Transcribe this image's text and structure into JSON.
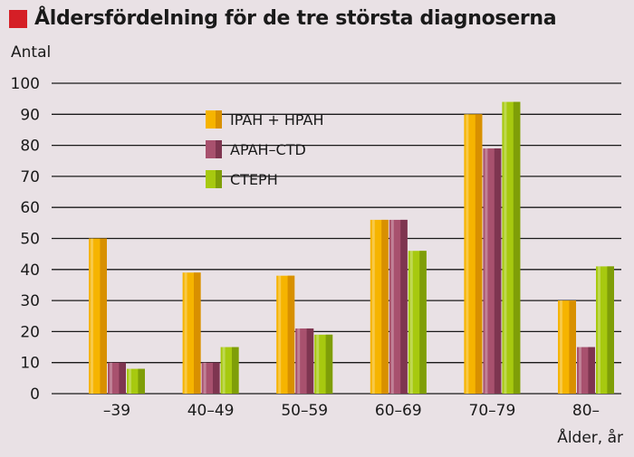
{
  "title": "Åldersfördelning för de tre största diagnoserna",
  "colors": {
    "title_marker": "#d51f26",
    "background": "#e9e1e5",
    "grid": "#1a1a1a"
  },
  "chart_data": {
    "type": "bar",
    "title": "Åldersfördelning för de tre största diagnoserna",
    "ylabel": "Antal",
    "xlabel": "Ålder, år",
    "ylim": [
      0,
      100
    ],
    "yticks": [
      0,
      10,
      20,
      30,
      40,
      50,
      60,
      70,
      80,
      90,
      100
    ],
    "grid": true,
    "legend_position": "top-center",
    "categories": [
      "–39",
      "40–49",
      "50–59",
      "60–69",
      "70–79",
      "80–"
    ],
    "series": [
      {
        "name": "IPAH + HPAH",
        "color": "#f6b400",
        "shade": "#d89000",
        "values": [
          50,
          39,
          38,
          56,
          90,
          30
        ]
      },
      {
        "name": "APAH–CTD",
        "color": "#a8516e",
        "shade": "#7e3550",
        "values": [
          10,
          10,
          21,
          56,
          79,
          15
        ]
      },
      {
        "name": "CTEPH",
        "color": "#a7c90f",
        "shade": "#7f9e08",
        "values": [
          8,
          15,
          19,
          46,
          94,
          41
        ]
      }
    ]
  }
}
